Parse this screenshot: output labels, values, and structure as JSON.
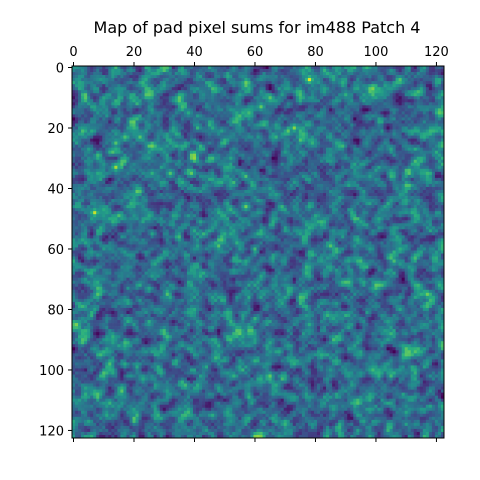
{
  "chart_data": {
    "type": "heatmap",
    "title": "Map of pad pixel sums for im488 Patch 4",
    "xlabel": "",
    "ylabel": "",
    "rows": 123,
    "cols": 123,
    "xlim": [
      -0.5,
      122.5
    ],
    "ylim": [
      122.5,
      -0.5
    ],
    "x_axis_position": "top",
    "y_axis_inverted": true,
    "xticks": [
      0,
      20,
      40,
      60,
      80,
      100,
      120
    ],
    "yticks": [
      0,
      20,
      40,
      60,
      80,
      100,
      120
    ],
    "xtick_labels": [
      "0",
      "20",
      "40",
      "60",
      "80",
      "100",
      "120"
    ],
    "ytick_labels": [
      "0",
      "20",
      "40",
      "60",
      "80",
      "100",
      "120"
    ],
    "colormap": "viridis",
    "colormap_stops": [
      "#440154",
      "#472d7b",
      "#3b528b",
      "#2c728e",
      "#21918c",
      "#28ae80",
      "#5ec962",
      "#addc30",
      "#fde725"
    ],
    "grid": false,
    "legend": "none",
    "texture": "dense fine-grained noise, predominantly blue-teal (viridis 0.25-0.55) with scattered bright yellow-green hotspots concentrated in the upper-left quadrant",
    "hotspots": [
      {
        "x": 78,
        "y": 4,
        "level": 0.95
      },
      {
        "x": 7,
        "y": 48,
        "level": 0.92
      },
      {
        "x": 14,
        "y": 33,
        "level": 0.88
      },
      {
        "x": 57,
        "y": 46,
        "level": 0.82
      },
      {
        "x": 73,
        "y": 20,
        "level": 0.85
      },
      {
        "x": 22,
        "y": 23,
        "level": 0.78
      },
      {
        "x": 32,
        "y": 35,
        "level": 0.78
      },
      {
        "x": 62,
        "y": 13,
        "level": 0.8
      },
      {
        "x": 14,
        "y": 25,
        "level": 0.78
      },
      {
        "x": 106,
        "y": 64,
        "level": 0.76
      },
      {
        "x": 46,
        "y": 20,
        "level": 0.7
      },
      {
        "x": 60,
        "y": 97,
        "level": 0.72
      },
      {
        "x": 78,
        "y": 85,
        "level": 0.7
      },
      {
        "x": 98,
        "y": 36,
        "level": 0.66
      },
      {
        "x": 90,
        "y": 9,
        "level": 0.72
      },
      {
        "x": 26,
        "y": 35,
        "level": 0.72
      },
      {
        "x": 8,
        "y": 35,
        "level": 0.7
      },
      {
        "x": 52,
        "y": 30,
        "level": 0.68
      },
      {
        "x": 38,
        "y": 15,
        "level": 0.7
      },
      {
        "x": 65,
        "y": 40,
        "level": 0.66
      },
      {
        "x": 25,
        "y": 50,
        "level": 0.66
      },
      {
        "x": 40,
        "y": 60,
        "level": 0.62
      },
      {
        "x": 85,
        "y": 100,
        "level": 0.64
      },
      {
        "x": 110,
        "y": 112,
        "level": 0.62
      },
      {
        "x": 95,
        "y": 58,
        "level": 0.62
      },
      {
        "x": 10,
        "y": 70,
        "level": 0.6
      },
      {
        "x": 118,
        "y": 20,
        "level": 0.62
      },
      {
        "x": 30,
        "y": 95,
        "level": 0.6
      },
      {
        "x": 70,
        "y": 70,
        "level": 0.6
      },
      {
        "x": 115,
        "y": 85,
        "level": 0.6
      }
    ]
  }
}
